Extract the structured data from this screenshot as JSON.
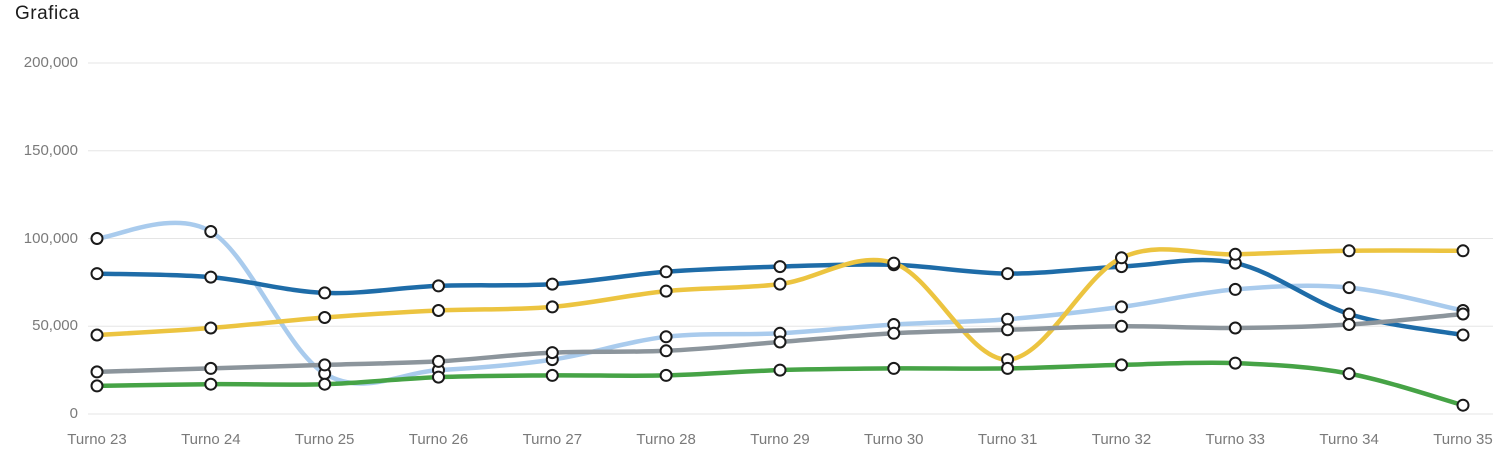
{
  "title": "Grafica",
  "chart_data": {
    "type": "line",
    "curve": "smooth",
    "legend_position": "none",
    "grid": true,
    "background": "#ffffff",
    "categories": [
      "Turno 23",
      "Turno 24",
      "Turno 25",
      "Turno 26",
      "Turno 27",
      "Turno 28",
      "Turno 29",
      "Turno 30",
      "Turno 31",
      "Turno 32",
      "Turno 33",
      "Turno 34",
      "Turno 35"
    ],
    "series": [
      {
        "name": "light-blue",
        "color": "#a9cbed",
        "values": [
          100000,
          104000,
          23000,
          25000,
          31000,
          44000,
          46000,
          51000,
          54000,
          61000,
          71000,
          72000,
          59000
        ]
      },
      {
        "name": "dark-blue",
        "color": "#1e6ca8",
        "values": [
          80000,
          78000,
          69000,
          73000,
          74000,
          81000,
          84000,
          85000,
          80000,
          84000,
          86000,
          57000,
          45000
        ]
      },
      {
        "name": "yellow",
        "color": "#ecc440",
        "values": [
          45000,
          49000,
          55000,
          59000,
          61000,
          70000,
          74000,
          86000,
          31000,
          89000,
          91000,
          93000,
          93000
        ]
      },
      {
        "name": "gray",
        "color": "#8c959c",
        "values": [
          24000,
          26000,
          28000,
          30000,
          35000,
          36000,
          41000,
          46000,
          48000,
          50000,
          49000,
          51000,
          57000
        ]
      },
      {
        "name": "green",
        "color": "#46a346",
        "values": [
          16000,
          17000,
          17000,
          21000,
          22000,
          22000,
          25000,
          26000,
          26000,
          28000,
          29000,
          23000,
          5000
        ]
      }
    ],
    "ylim": [
      0,
      200000
    ],
    "y_ticks": [
      0,
      50000,
      100000,
      150000,
      200000
    ],
    "y_tick_labels": [
      "0",
      "50,000",
      "100,000",
      "150,000",
      "200,000"
    ],
    "point_style": {
      "fill": "#ffffff",
      "stroke": "#1a1a1a"
    }
  },
  "colors": {
    "title": "#1c1c1c",
    "axis_label": "#7a7a7a",
    "gridline": "#e5e5e5",
    "background": "#ffffff"
  }
}
